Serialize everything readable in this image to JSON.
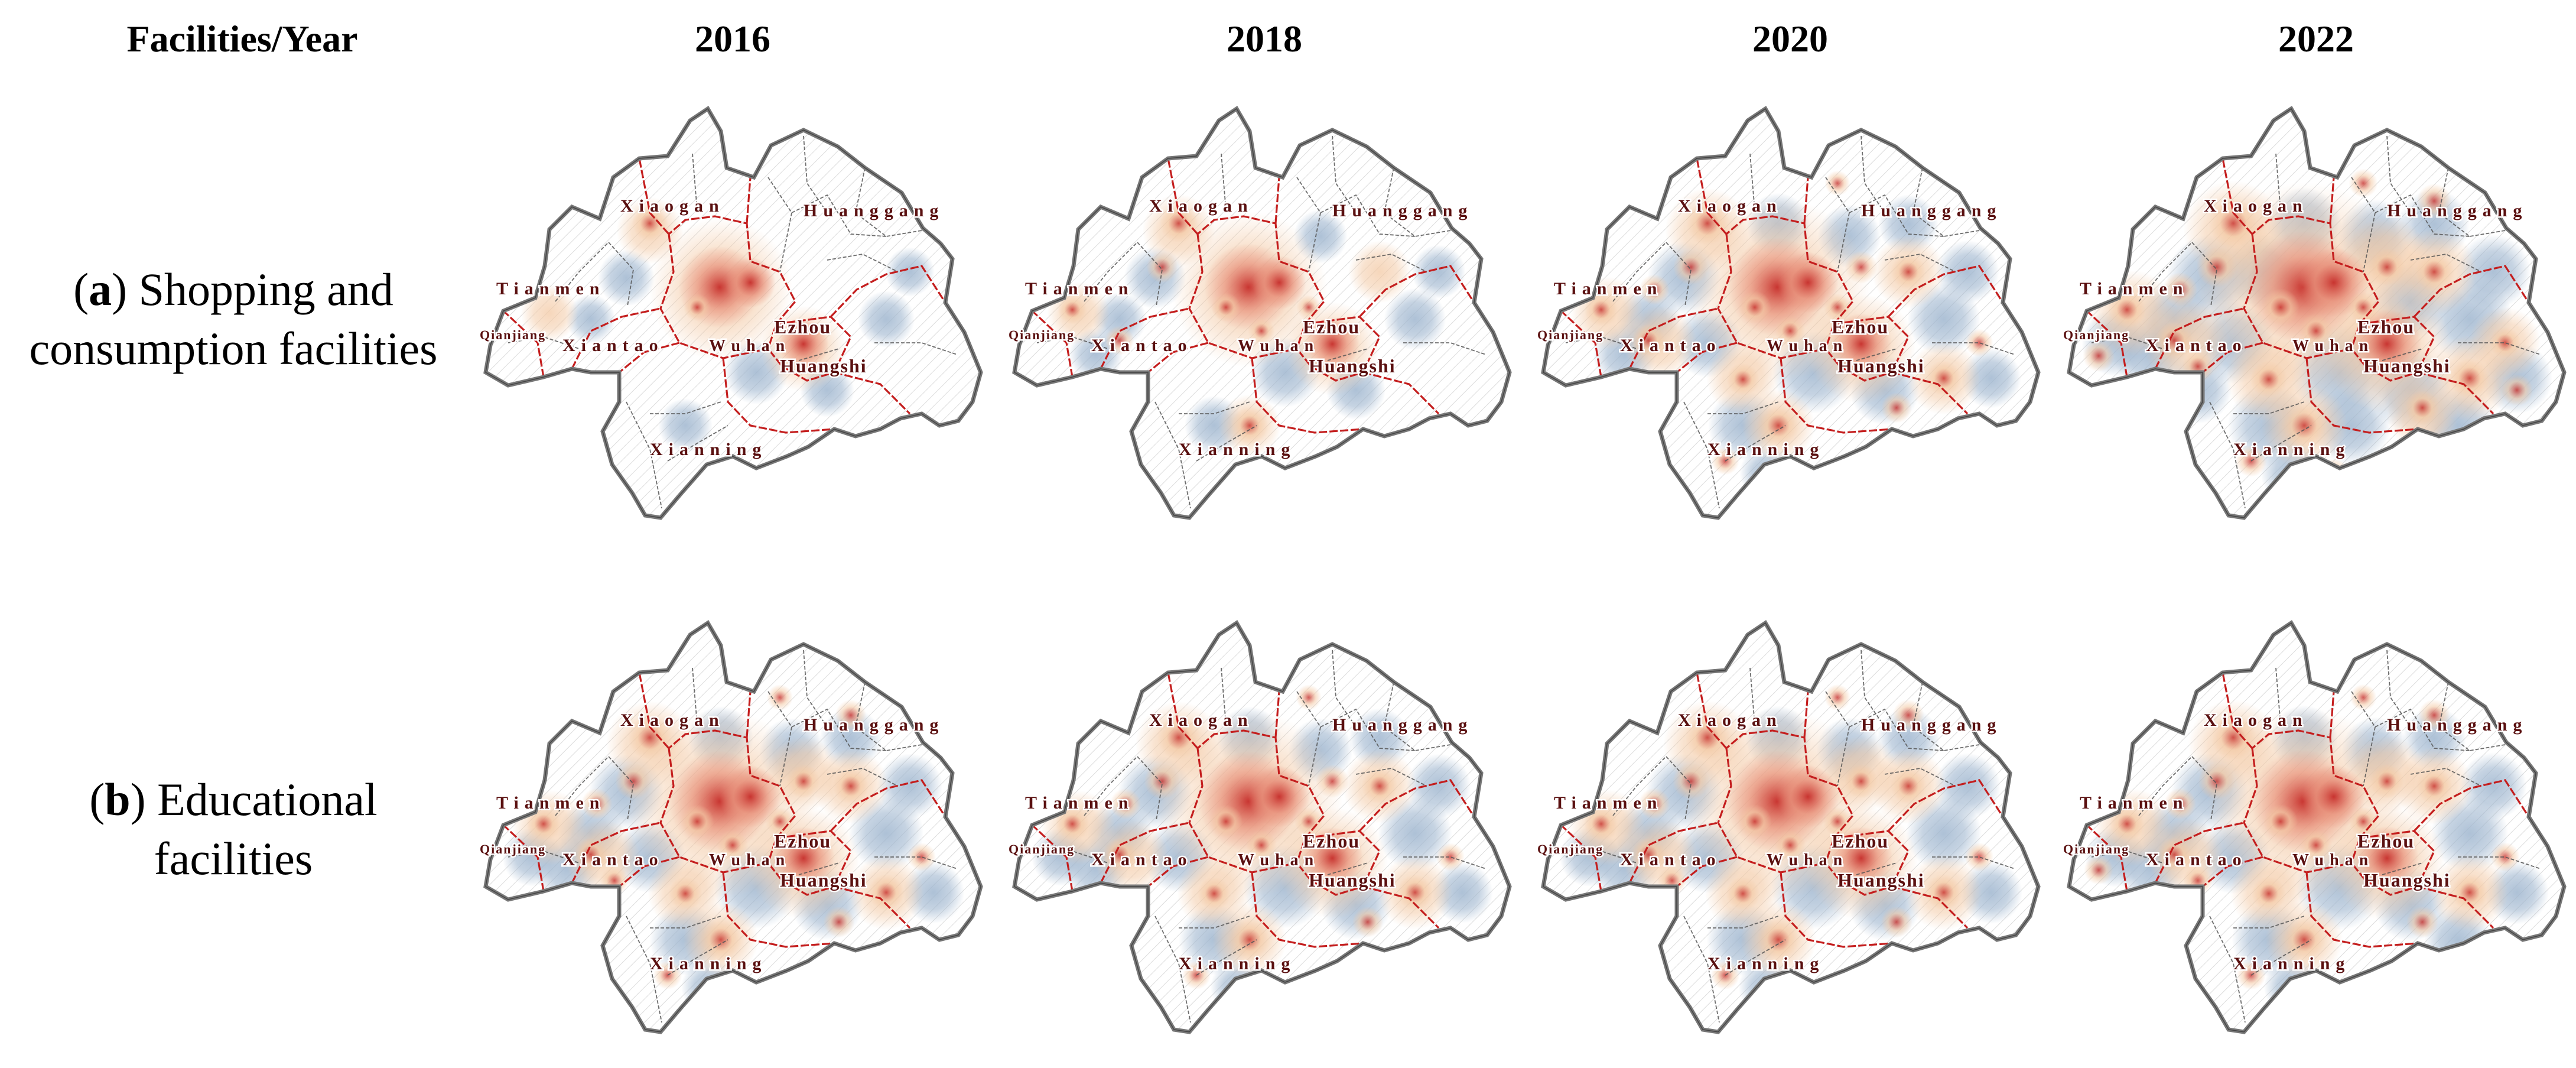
{
  "header": {
    "corner": "Facilities/Year",
    "years": [
      "2016",
      "2018",
      "2020",
      "2022"
    ]
  },
  "rows": [
    {
      "letter": "a",
      "label_line1": " Shopping and",
      "label_line2": "consumption facilities"
    },
    {
      "letter": "b",
      "label_line1": " Educational",
      "label_line2": "facilities"
    }
  ],
  "city_labels": {
    "xiaogan": "Xiaogan",
    "huanggang": "Huanggang",
    "tianmen": "Tianmen",
    "qianjiang": "Qianjiang",
    "xiantao": "Xiantao",
    "wuhan": "Wuhan",
    "ezhou": "Ezhou",
    "huangshi": "Huangshi",
    "xianning": "Xianning"
  },
  "colors": {
    "hotspot_core": "#c62d2a",
    "hotspot_mid": "#e8907a",
    "warm_halo": "#f3c9a4",
    "cool_spread": "#9fb6cf",
    "city_boundary": "#c41e1e",
    "county_boundary": "#555555",
    "outer_boundary": "#777777"
  },
  "density_level": {
    "a": [
      0.18,
      0.3,
      0.55,
      0.85
    ],
    "b": [
      0.6,
      0.58,
      0.62,
      0.65
    ]
  }
}
